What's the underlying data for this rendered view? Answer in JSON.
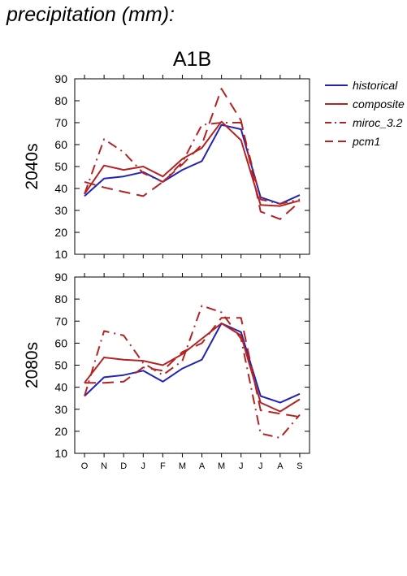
{
  "page_title": "precipitation (mm):",
  "colors": {
    "historical": "#2323b4",
    "scenario": "#b42323",
    "axis": "#000000"
  },
  "chart_data": [
    {
      "type": "line",
      "title": "A1B",
      "ylabel": "2040s",
      "xlabel": "",
      "categories": [
        "O",
        "N",
        "D",
        "J",
        "F",
        "M",
        "A",
        "M",
        "J",
        "J",
        "A",
        "S"
      ],
      "ylim": [
        10,
        90
      ],
      "yticks": [
        10,
        20,
        30,
        40,
        50,
        60,
        70,
        80,
        90
      ],
      "grid": false,
      "legend_position": "right",
      "series": [
        {
          "name": "historical",
          "style": "solid",
          "color": "#2323b4",
          "values": [
            36.5,
            44.5,
            45.5,
            47.5,
            43,
            48.5,
            52.5,
            69,
            67,
            36,
            33,
            37
          ]
        },
        {
          "name": "composite",
          "style": "solid",
          "color": "#b42323",
          "values": [
            37.5,
            50.5,
            48.5,
            50,
            45.5,
            53.5,
            58.5,
            70.5,
            62,
            32.5,
            32,
            34.5
          ]
        },
        {
          "name": "miroc_3.2",
          "style": "dashdot",
          "color": "#b42323",
          "values": [
            37.5,
            62.5,
            56.5,
            47,
            43,
            52,
            69,
            70,
            70,
            35,
            33,
            35
          ]
        },
        {
          "name": "pcm1",
          "style": "dashed",
          "color": "#b42323",
          "values": [
            43,
            40.5,
            38.5,
            36.5,
            43,
            51,
            60,
            85.5,
            71,
            29.5,
            26,
            34
          ]
        }
      ]
    },
    {
      "type": "line",
      "title": "",
      "ylabel": "2080s",
      "xlabel": "",
      "categories": [
        "O",
        "N",
        "D",
        "J",
        "F",
        "M",
        "A",
        "M",
        "J",
        "J",
        "A",
        "S"
      ],
      "ylim": [
        10,
        90
      ],
      "yticks": [
        10,
        20,
        30,
        40,
        50,
        60,
        70,
        80,
        90
      ],
      "grid": false,
      "series": [
        {
          "name": "historical",
          "style": "solid",
          "color": "#2323b4",
          "values": [
            36,
            44.5,
            45.5,
            47.5,
            42.5,
            48.5,
            52.5,
            69,
            65,
            36,
            33,
            37
          ]
        },
        {
          "name": "composite",
          "style": "solid",
          "color": "#b42323",
          "values": [
            42,
            53.5,
            52.5,
            52,
            50,
            55,
            62,
            69,
            63.5,
            33,
            29,
            34.5
          ]
        },
        {
          "name": "miroc_3.2",
          "style": "dashdot",
          "color": "#b42323",
          "values": [
            36,
            65.5,
            63.5,
            51,
            45.5,
            52,
            77,
            74,
            62,
            19,
            17,
            27.5
          ]
        },
        {
          "name": "pcm1",
          "style": "dashed",
          "color": "#b42323",
          "values": [
            42,
            42,
            42.5,
            49,
            47.5,
            56,
            60,
            71.5,
            71.5,
            29.5,
            28,
            26.5
          ]
        }
      ]
    }
  ]
}
